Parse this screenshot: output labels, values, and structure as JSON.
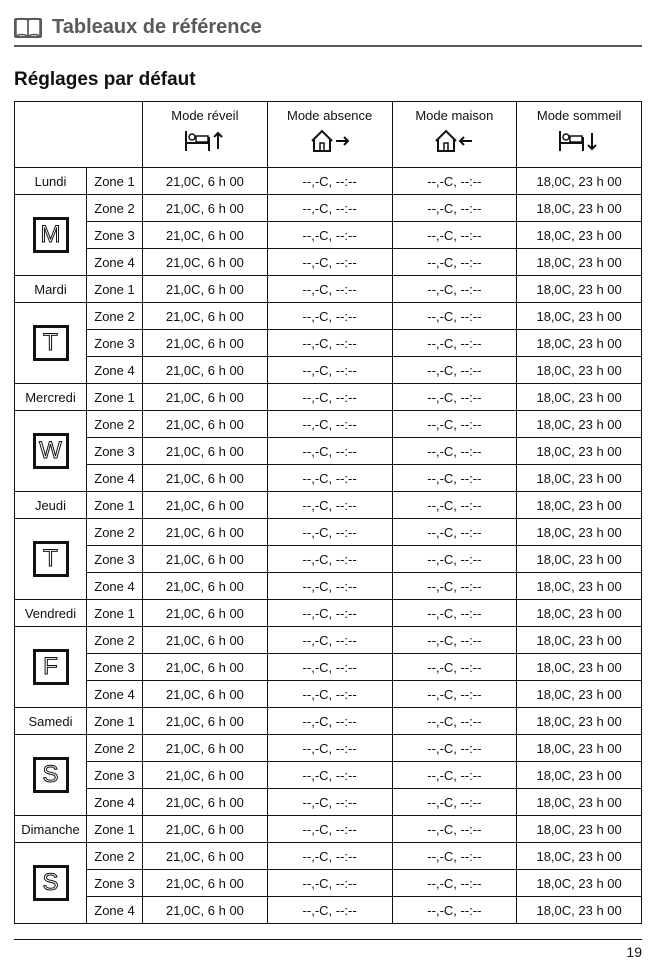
{
  "page": {
    "section_icon": "book-icon",
    "section_title": "Tableaux de référence",
    "subtitle": "Réglages par défaut",
    "page_number": "19",
    "colors": {
      "section_title": "#5a5a5a",
      "rule": "#5a5a5a",
      "border": "#111111",
      "text": "#111111",
      "background": "#ffffff"
    }
  },
  "table": {
    "mode_columns": [
      {
        "label": "Mode réveil",
        "icon": "bed-up-icon"
      },
      {
        "label": "Mode absence",
        "icon": "house-out-icon"
      },
      {
        "label": "Mode maison",
        "icon": "house-in-icon"
      },
      {
        "label": "Mode sommeil",
        "icon": "bed-down-icon"
      }
    ],
    "zone_labels": [
      "Zone 1",
      "Zone 2",
      "Zone 3",
      "Zone 4"
    ],
    "default_row": {
      "wake": "21,0C, 6 h 00",
      "away": "--,-C, --:--",
      "home": "--,-C, --:--",
      "sleep": "18,0C, 23 h 00"
    },
    "days": [
      {
        "name": "Lundi",
        "letter": "M"
      },
      {
        "name": "Mardi",
        "letter": "T"
      },
      {
        "name": "Mercredi",
        "letter": "W"
      },
      {
        "name": "Jeudi",
        "letter": "T"
      },
      {
        "name": "Vendredi",
        "letter": "F"
      },
      {
        "name": "Samedi",
        "letter": "S"
      },
      {
        "name": "Dimanche",
        "letter": "S"
      }
    ]
  }
}
